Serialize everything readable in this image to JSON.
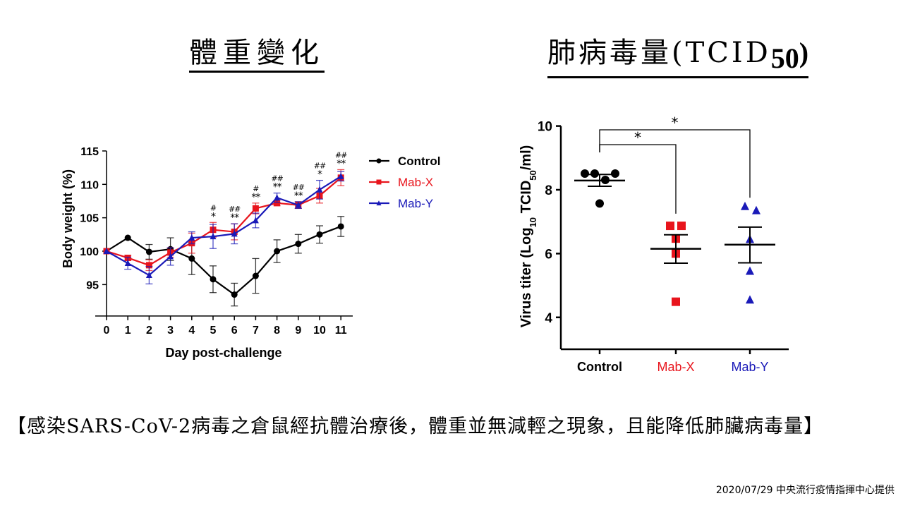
{
  "titles": {
    "left": "體重變化",
    "right_main": "肺病毒量(TCID",
    "right_sub": "50",
    "right_close": ")"
  },
  "caption": "【感染SARS-CoV-2病毒之倉鼠經抗體治療後，體重並無減輕之現象，且能降低肺臟病毒量】",
  "credit": "2020/07/29 中央流行疫情指揮中心提供",
  "colors": {
    "control": "#000000",
    "mab_x": "#e8141c",
    "mab_y": "#1a1ab8"
  },
  "chart_data": [
    {
      "type": "line",
      "title": "體重變化",
      "xlabel": "Day post-challenge",
      "ylabel": "Body weight (%)",
      "x": [
        0,
        1,
        2,
        3,
        4,
        5,
        6,
        7,
        8,
        9,
        10,
        11
      ],
      "x_ticks": [
        "0",
        "1",
        "2",
        "3",
        "4",
        "5",
        "6",
        "7",
        "8",
        "9",
        "10",
        "11"
      ],
      "y_ticks": [
        "95",
        "100",
        "105",
        "110",
        "115"
      ],
      "ylim": [
        90.3,
        115
      ],
      "legend_position": "right",
      "series": [
        {
          "name": "Control",
          "marker": "circle",
          "color": "#000000",
          "values": [
            100,
            102.0,
            99.9,
            100.3,
            98.9,
            95.8,
            93.5,
            96.3,
            100.0,
            101.1,
            102.5,
            103.7
          ],
          "err": [
            0,
            0,
            1.1,
            1.7,
            2.4,
            2.0,
            1.7,
            2.6,
            1.7,
            1.4,
            1.3,
            1.5
          ]
        },
        {
          "name": "Mab-X",
          "marker": "square",
          "color": "#e8141c",
          "values": [
            100,
            99.0,
            97.9,
            99.8,
            101.2,
            103.2,
            102.9,
            106.4,
            107.2,
            106.9,
            108.3,
            111.0
          ],
          "err": [
            0,
            0.4,
            0.8,
            0.7,
            1.5,
            1.1,
            1.2,
            0.8,
            0.4,
            0.5,
            1.1,
            1.2
          ]
        },
        {
          "name": "Mab-Y",
          "marker": "triangle",
          "color": "#1a1ab8",
          "values": [
            100,
            98.2,
            96.4,
            99.2,
            102.0,
            102.2,
            102.6,
            104.6,
            108.0,
            106.9,
            109.2,
            111.2
          ],
          "err": [
            0,
            0.9,
            1.3,
            1.3,
            0.9,
            1.8,
            1.5,
            1.1,
            0.7,
            0.5,
            1.4,
            0.7
          ]
        }
      ],
      "annotations": [
        {
          "day": 5,
          "hash": "#",
          "star": "*"
        },
        {
          "day": 6,
          "hash": "##",
          "star": "**"
        },
        {
          "day": 7,
          "hash": "#",
          "star": "**"
        },
        {
          "day": 8,
          "hash": "##",
          "star": "**"
        },
        {
          "day": 9,
          "hash": "##",
          "star": "**"
        },
        {
          "day": 10,
          "hash": "##",
          "star": "*"
        },
        {
          "day": 11,
          "hash": "##",
          "star": "**"
        }
      ]
    },
    {
      "type": "scatter",
      "title": "肺病毒量(TCID50)",
      "xlabel": "",
      "ylabel_main": "Virus titer (Log",
      "ylabel_sub1": "10",
      "ylabel_mid": " TCID",
      "ylabel_sub2": "50",
      "ylabel_end": "/ml)",
      "categories": [
        "Control",
        "Mab-X",
        "Mab-Y"
      ],
      "y_ticks": [
        "4",
        "6",
        "8",
        "10"
      ],
      "ylim": [
        3,
        10
      ],
      "groups": [
        {
          "name": "Control",
          "marker": "circle",
          "color": "#000000",
          "points": [
            8.51,
            8.51,
            8.31,
            8.51,
            7.57
          ],
          "mean": 8.29,
          "sem_upper": 8.48,
          "sem_lower": 8.11
        },
        {
          "name": "Mab-X",
          "marker": "square",
          "color": "#e8141c",
          "points": [
            6.87,
            6.87,
            6.47,
            6.0,
            4.49
          ],
          "mean": 6.15,
          "sem_upper": 6.59,
          "sem_lower": 5.7
        },
        {
          "name": "Mab-Y",
          "marker": "triangle",
          "color": "#1a1ab8",
          "points": [
            7.48,
            7.35,
            6.45,
            5.45,
            4.55
          ],
          "mean": 6.28,
          "sem_upper": 6.83,
          "sem_lower": 5.71
        }
      ],
      "significance": [
        {
          "from": "Control",
          "to": "Mab-X",
          "label": "*"
        },
        {
          "from": "Control",
          "to": "Mab-Y",
          "label": "*"
        }
      ]
    }
  ]
}
